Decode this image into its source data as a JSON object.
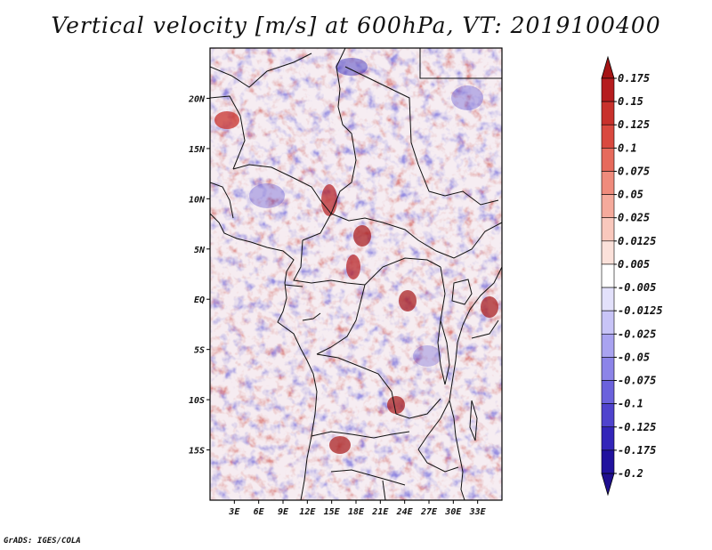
{
  "title": "Vertical velocity [m/s] at 600hPa, VT: 2019100400",
  "credit": "GrADS: IGES/COLA",
  "map": {
    "lon_range": [
      0,
      36
    ],
    "lat_range": [
      -20,
      25
    ],
    "lon_ticks": [
      {
        "lon": 3,
        "label": "3E"
      },
      {
        "lon": 6,
        "label": "6E"
      },
      {
        "lon": 9,
        "label": "9E"
      },
      {
        "lon": 12,
        "label": "12E"
      },
      {
        "lon": 15,
        "label": "15E"
      },
      {
        "lon": 18,
        "label": "18E"
      },
      {
        "lon": 21,
        "label": "21E"
      },
      {
        "lon": 24,
        "label": "24E"
      },
      {
        "lon": 27,
        "label": "27E"
      },
      {
        "lon": 30,
        "label": "30E"
      },
      {
        "lon": 33,
        "label": "33E"
      }
    ],
    "lat_ticks": [
      {
        "lat": 20,
        "label": "20N"
      },
      {
        "lat": 15,
        "label": "15N"
      },
      {
        "lat": 10,
        "label": "10N"
      },
      {
        "lat": 5,
        "label": "5N"
      },
      {
        "lat": 0,
        "label": "EQ"
      },
      {
        "lat": -5,
        "label": "5S"
      },
      {
        "lat": -10,
        "label": "10S"
      },
      {
        "lat": -15,
        "label": "15S"
      }
    ],
    "field": "vertical velocity",
    "level": "600hPa",
    "basemap": "African coastlines and country borders"
  },
  "colorbar": {
    "orientation": "vertical",
    "position": "right",
    "levels": [
      {
        "label": "0.175",
        "color": "#a51415"
      },
      {
        "label": "0.15",
        "color": "#b51d1f"
      },
      {
        "label": "0.125",
        "color": "#c8312c"
      },
      {
        "label": "0.1",
        "color": "#d9493f"
      },
      {
        "label": "0.075",
        "color": "#e66a5c"
      },
      {
        "label": "0.05",
        "color": "#ef8b7c"
      },
      {
        "label": "0.025",
        "color": "#f5aa9c"
      },
      {
        "label": "0.0125",
        "color": "#f9c8bd"
      },
      {
        "label": "0.005",
        "color": "#fbe1da"
      },
      {
        "label": "-0.005",
        "color": "#ffffff"
      },
      {
        "label": "-0.0125",
        "color": "#e3e1fb"
      },
      {
        "label": "-0.025",
        "color": "#c8c4f7"
      },
      {
        "label": "-0.05",
        "color": "#a9a3f0"
      },
      {
        "label": "-0.075",
        "color": "#8c84e8"
      },
      {
        "label": "-0.1",
        "color": "#6b62dc"
      },
      {
        "label": "-0.125",
        "color": "#4f43cd"
      },
      {
        "label": "-0.175",
        "color": "#3325b9"
      },
      {
        "label": "-0.2",
        "color": "#21129e"
      }
    ],
    "top_cap_color": "#a51415",
    "bottom_cap_color": "#1f0f8f"
  }
}
